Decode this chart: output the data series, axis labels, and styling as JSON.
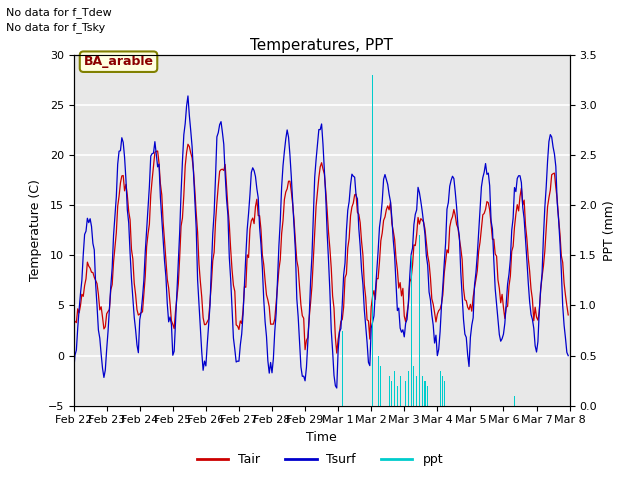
{
  "title": "Temperatures, PPT",
  "xlabel": "Time",
  "ylabel_left": "Temperature (C)",
  "ylabel_right": "PPT (mm)",
  "annotations": [
    "No data for f_Tdew",
    "No data for f_Tsky"
  ],
  "label_box": "BA_arable",
  "legend_labels": [
    "Tair",
    "Tsurf",
    "ppt"
  ],
  "tair_color": "#cc0000",
  "tsurf_color": "#0000cc",
  "ppt_color": "#00cccc",
  "ylim_left": [
    -5,
    30
  ],
  "ylim_right": [
    0.0,
    3.5
  ],
  "yticks_left": [
    -5,
    0,
    5,
    10,
    15,
    20,
    25,
    30
  ],
  "yticks_right": [
    0.0,
    0.5,
    1.0,
    1.5,
    2.0,
    2.5,
    3.0,
    3.5
  ],
  "plot_bg_color": "#e8e8e8",
  "grid_color": "#ffffff",
  "figsize": [
    6.4,
    4.8
  ],
  "dpi": 100
}
